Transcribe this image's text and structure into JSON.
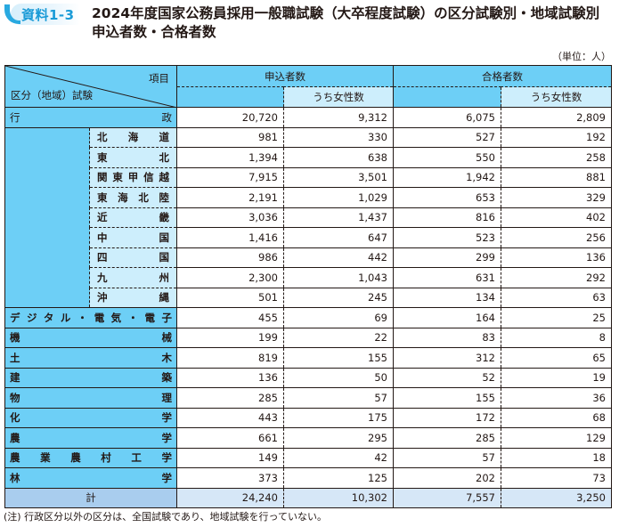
{
  "badge": "資料1-3",
  "title_line1": "2024年度国家公務員採用一般職試験（大卒程度試験）の区分試験別・地域試験別",
  "title_line2": "申込者数・合格者数",
  "unit": "（単位：人）",
  "header": {
    "item": "項目",
    "division": "区分（地域）試験",
    "applicants": "申込者数",
    "passers": "合格者数",
    "women": "うち女性数"
  },
  "gyosei": {
    "label_left": "行",
    "label_right": "政",
    "values": [
      "20,720",
      "9,312",
      "6,075",
      "2,809"
    ],
    "regions": [
      {
        "chars": [
          "北",
          "海",
          "道"
        ],
        "values": [
          "981",
          "330",
          "527",
          "192"
        ]
      },
      {
        "chars": [
          "東",
          "北"
        ],
        "values": [
          "1,394",
          "638",
          "550",
          "258"
        ]
      },
      {
        "chars": [
          "関",
          "東",
          "甲",
          "信",
          "越"
        ],
        "values": [
          "7,915",
          "3,501",
          "1,942",
          "881"
        ]
      },
      {
        "chars": [
          "東",
          "海",
          "北",
          "陸"
        ],
        "values": [
          "2,191",
          "1,029",
          "653",
          "329"
        ]
      },
      {
        "chars": [
          "近",
          "畿"
        ],
        "values": [
          "3,036",
          "1,437",
          "816",
          "402"
        ]
      },
      {
        "chars": [
          "中",
          "国"
        ],
        "values": [
          "1,416",
          "647",
          "523",
          "256"
        ]
      },
      {
        "chars": [
          "四",
          "国"
        ],
        "values": [
          "986",
          "442",
          "299",
          "136"
        ]
      },
      {
        "chars": [
          "九",
          "州"
        ],
        "values": [
          "2,300",
          "1,043",
          "631",
          "292"
        ]
      },
      {
        "chars": [
          "沖",
          "縄"
        ],
        "values": [
          "501",
          "245",
          "134",
          "63"
        ]
      }
    ]
  },
  "divisions": [
    {
      "chars": [
        "デ",
        "ジ",
        "タ",
        "ル",
        "・",
        "電",
        "気",
        "・",
        "電",
        "子"
      ],
      "values": [
        "455",
        "69",
        "164",
        "25"
      ]
    },
    {
      "chars": [
        "機",
        "械"
      ],
      "values": [
        "199",
        "22",
        "83",
        "8"
      ]
    },
    {
      "chars": [
        "土",
        "木"
      ],
      "values": [
        "819",
        "155",
        "312",
        "65"
      ]
    },
    {
      "chars": [
        "建",
        "築"
      ],
      "values": [
        "136",
        "50",
        "52",
        "19"
      ]
    },
    {
      "chars": [
        "物",
        "理"
      ],
      "values": [
        "285",
        "57",
        "155",
        "36"
      ]
    },
    {
      "chars": [
        "化",
        "学"
      ],
      "values": [
        "443",
        "175",
        "172",
        "68"
      ]
    },
    {
      "chars": [
        "農",
        "学"
      ],
      "values": [
        "661",
        "295",
        "285",
        "129"
      ]
    },
    {
      "chars": [
        "農",
        "業",
        "農",
        "村",
        "工",
        "学"
      ],
      "values": [
        "149",
        "42",
        "57",
        "18"
      ]
    },
    {
      "chars": [
        "林",
        "学"
      ],
      "values": [
        "373",
        "125",
        "202",
        "73"
      ]
    }
  ],
  "total": {
    "label": "計",
    "values": [
      "24,240",
      "10,302",
      "7,557",
      "3,250"
    ]
  },
  "note": "(注) 行政区分以外の区分は、全国試験であり、地域試験を行っていない。",
  "colors": {
    "header_blue": "#6dcff6",
    "sub_blue": "#cdeefc",
    "total_label": "#a9cdee",
    "total_row": "#d6e7f7",
    "badge_blue": "#29a9e0"
  }
}
